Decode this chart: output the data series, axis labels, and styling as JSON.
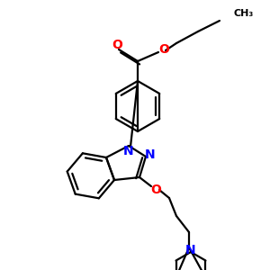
{
  "bg_color": "#ffffff",
  "bond_color": "#000000",
  "n_color": "#0000ff",
  "o_color": "#ff0000",
  "lw": 1.6,
  "figsize": [
    3.0,
    3.0
  ],
  "dpi": 100,
  "xlim": [
    0,
    300
  ],
  "ylim": [
    0,
    300
  ]
}
